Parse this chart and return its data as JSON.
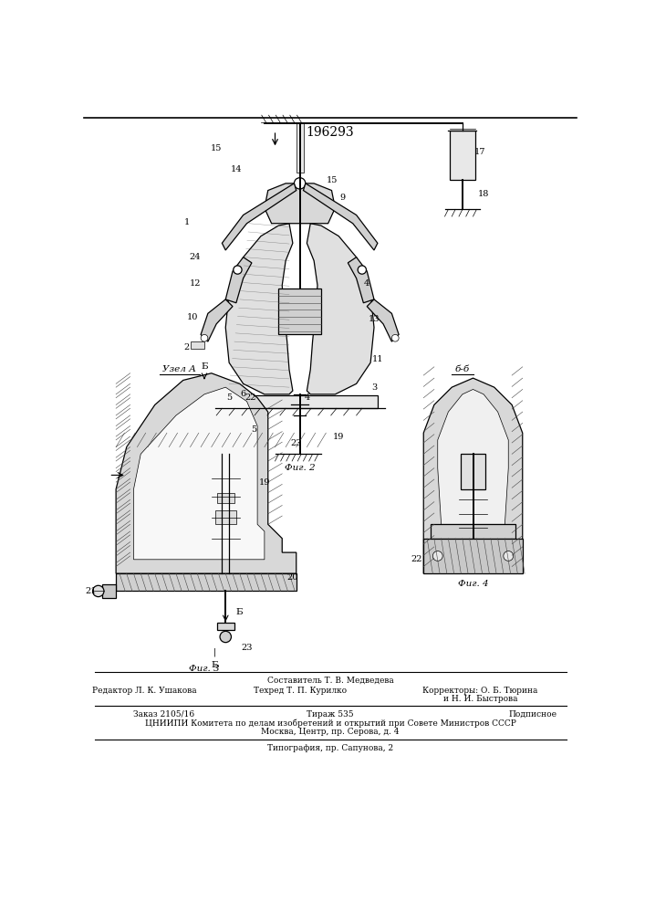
{
  "title": "196293",
  "background_color": "#f5f5f0",
  "fig2_label": "Фиг. 2",
  "fig3_label": "Фиг. 3",
  "fig4_label": "Фиг. 4",
  "node_a_label": "Узел А",
  "section_bb_label": "б-б",
  "footer_sestavitel": "Составитель Т. В. Медведева",
  "footer_redaktor": "Редактор Л. К. Ушакова",
  "footer_tekhred": "Техред Т. П. Курилко",
  "footer_korr1": "Корректоры: О. Б. Тюрина",
  "footer_korr2": "и Н. И. Быстрова",
  "footer_zakaz": "Заказ 2105/16",
  "footer_tirazh": "Тираж 535",
  "footer_podp": "Подписное",
  "footer_tsniip": "ЦНИИПИ Комитета по делам изобретений и открытий при Совете Министров СССР",
  "footer_moskva": "Москва, Центр, пр. Серова, д. 4",
  "footer_tipografiya": "Типография, пр. Сапунова, 2"
}
